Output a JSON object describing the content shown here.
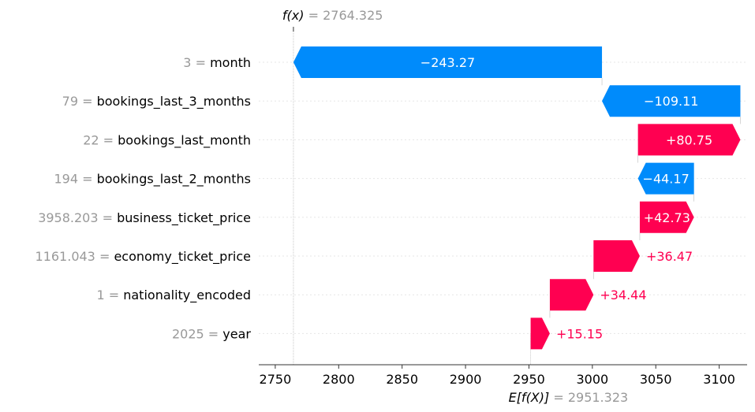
{
  "chart_data": {
    "type": "bar",
    "title": "",
    "xlabel": "",
    "ylabel": "",
    "xlim": [
      2737,
      3122
    ],
    "xticks": [
      "2750",
      "2800",
      "2850",
      "2900",
      "2950",
      "3000",
      "3050",
      "3100"
    ],
    "xtick_values": [
      2750,
      2800,
      2850,
      2900,
      2950,
      3000,
      3050,
      3100
    ],
    "base_value": 2951.323,
    "output_value": 2764.325,
    "base_label": {
      "func": "E[f(X)]",
      "value": "2951.323"
    },
    "output_label": {
      "func": "f(x)",
      "value": "2764.325"
    },
    "features": [
      {
        "value": "3",
        "name": "month",
        "shap": -243.27,
        "label": "−243.27"
      },
      {
        "value": "79",
        "name": "bookings_last_3_months",
        "shap": -109.11,
        "label": "−109.11"
      },
      {
        "value": "22",
        "name": "bookings_last_month",
        "shap": 80.75,
        "label": "+80.75"
      },
      {
        "value": "194",
        "name": "bookings_last_2_months",
        "shap": -44.17,
        "label": "−44.17"
      },
      {
        "value": "3958.203",
        "name": "business_ticket_price",
        "shap": 42.73,
        "label": "+42.73"
      },
      {
        "value": "1161.043",
        "name": "economy_ticket_price",
        "shap": 36.47,
        "label": "+36.47"
      },
      {
        "value": "1",
        "name": "nationality_encoded",
        "shap": 34.44,
        "label": "+34.44"
      },
      {
        "value": "2025",
        "name": "year",
        "shap": 15.15,
        "label": "+15.15"
      }
    ],
    "colors": {
      "positive": "#ff0051",
      "negative": "#008bfb",
      "value_gray": "#999999"
    }
  }
}
